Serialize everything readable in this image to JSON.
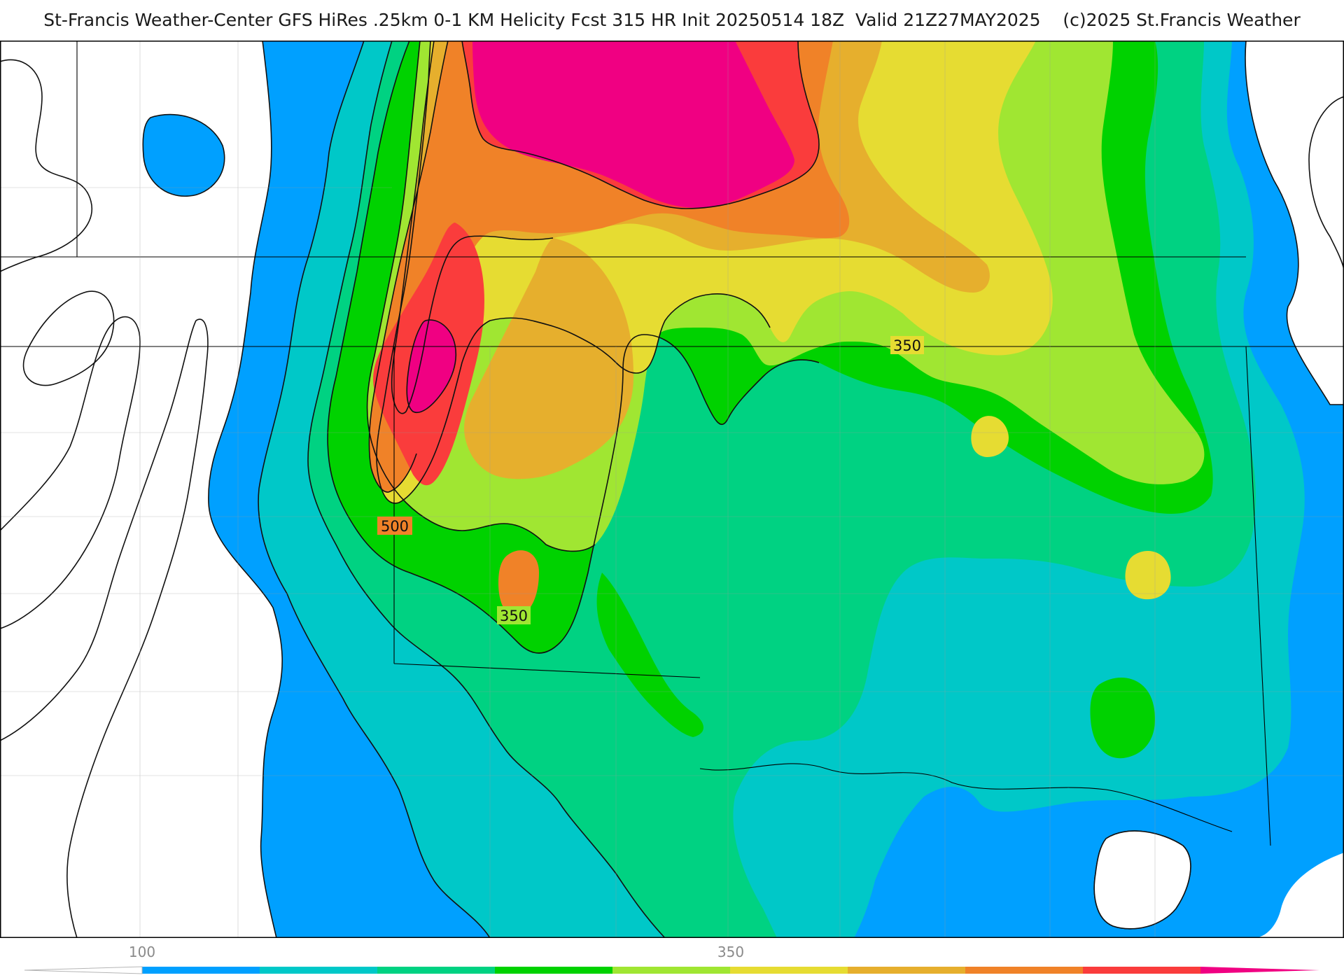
{
  "header": {
    "title": "St-Francis Weather-Center GFS HiRes .25km 0-1 KM Helicity Fcst 315 HR Init 20250514 18Z  Valid 21Z27MAY2025    (c)2025 St.Francis Weather"
  },
  "map": {
    "contour_labels": [
      "350",
      "500",
      "350"
    ],
    "fill_colors": {
      "blue": "#00a0ff",
      "cyan": "#00c8c8",
      "teal": "#00d282",
      "green": "#00d200",
      "lime": "#a0e632",
      "yellow": "#e6dc32",
      "gold": "#e6af2d",
      "orange": "#f08228",
      "red": "#fa3c3c",
      "magenta": "#f00082"
    }
  },
  "colorbar": {
    "tick_labels": [
      "100",
      "350"
    ],
    "colors": [
      "#00a0ff",
      "#00c8c8",
      "#00d282",
      "#00d200",
      "#a0e632",
      "#e6dc32",
      "#e6af2d",
      "#f08228",
      "#fa3c3c",
      "#f00082"
    ]
  }
}
